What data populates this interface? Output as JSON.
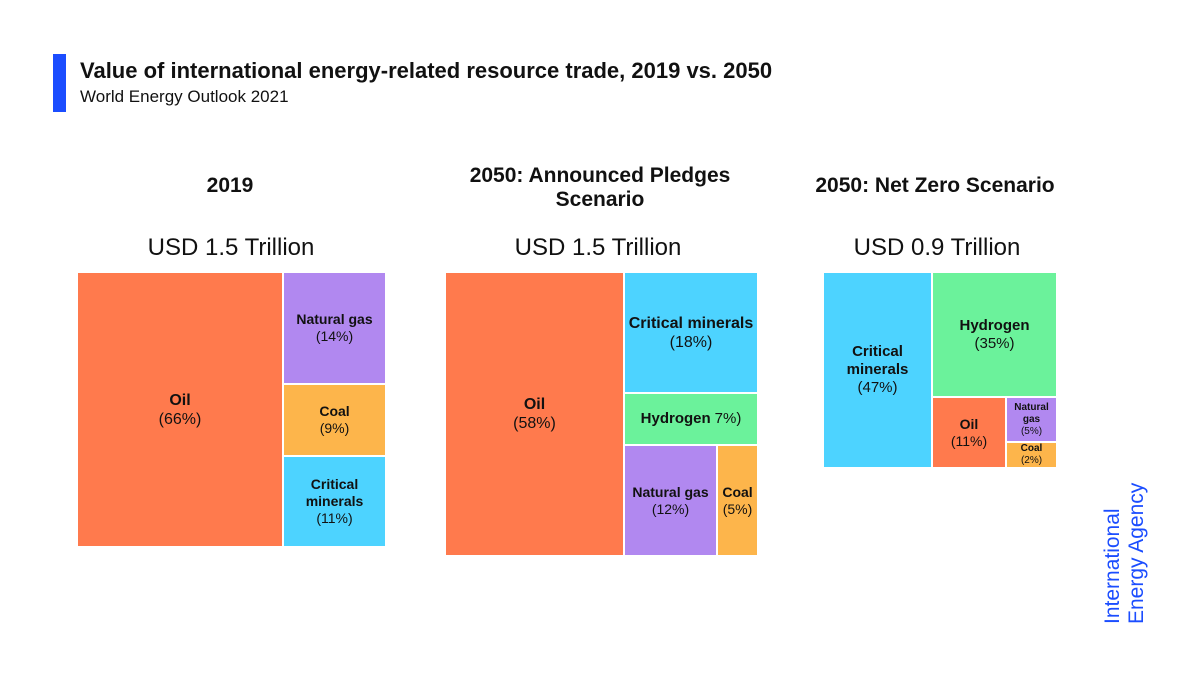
{
  "header": {
    "title": "Value of international energy-related resource trade, 2019 vs. 2050",
    "subtitle": "World Energy Outlook 2021"
  },
  "colors": {
    "accent": "#1B4DFF",
    "oil": "#FF7A4D",
    "natural_gas": "#B188F0",
    "coal": "#FDB54B",
    "critical_minerals": "#4DD3FF",
    "hydrogen": "#6BF29B"
  },
  "logo": {
    "line1": "International",
    "line2": "Energy Agency"
  },
  "chart_data": [
    {
      "type": "treemap",
      "title": "2019",
      "total": "USD 1.5 Trillion",
      "tiles": [
        {
          "name": "Oil",
          "share": 66,
          "pct": "(66%)",
          "color_key": "oil"
        },
        {
          "name": "Natural gas",
          "share": 14,
          "pct": "(14%)",
          "color_key": "natural_gas"
        },
        {
          "name": "Coal",
          "share": 9,
          "pct": "(9%)",
          "color_key": "coal"
        },
        {
          "name": "Critical minerals",
          "share": 11,
          "pct": "(11%)",
          "color_key": "critical_minerals"
        }
      ]
    },
    {
      "type": "treemap",
      "title": "2050: Announced Pledges Scenario",
      "total": "USD 1.5 Trillion",
      "tiles": [
        {
          "name": "Oil",
          "share": 58,
          "pct": "(58%)",
          "color_key": "oil"
        },
        {
          "name": "Critical minerals",
          "share": 18,
          "pct": "(18%)",
          "color_key": "critical_minerals"
        },
        {
          "name": "Hydrogen",
          "share": 7,
          "pct": "7%)",
          "color_key": "hydrogen"
        },
        {
          "name": "Natural gas",
          "share": 12,
          "pct": "(12%)",
          "color_key": "natural_gas"
        },
        {
          "name": "Coal",
          "share": 5,
          "pct": "(5%)",
          "color_key": "coal"
        }
      ]
    },
    {
      "type": "treemap",
      "title": "2050: Net Zero Scenario",
      "total": "USD 0.9 Trillion",
      "tiles": [
        {
          "name": "Critical minerals",
          "share": 47,
          "pct": "(47%)",
          "color_key": "critical_minerals"
        },
        {
          "name": "Hydrogen",
          "share": 35,
          "pct": "(35%)",
          "color_key": "hydrogen"
        },
        {
          "name": "Oil",
          "share": 11,
          "pct": "(11%)",
          "color_key": "oil"
        },
        {
          "name": "Natural gas",
          "share": 5,
          "pct": "(5%)",
          "color_key": "natural_gas"
        },
        {
          "name": "Coal",
          "share": 2,
          "pct": "(2%)",
          "color_key": "coal"
        }
      ]
    }
  ]
}
